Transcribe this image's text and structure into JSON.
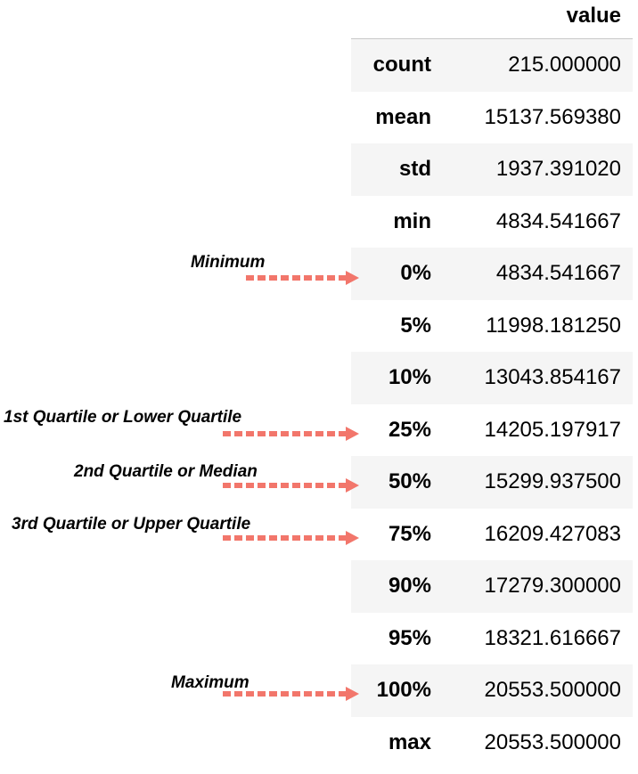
{
  "table": {
    "column_header": "value",
    "rows": [
      {
        "label": "count",
        "value": "215.000000"
      },
      {
        "label": "mean",
        "value": "15137.569380"
      },
      {
        "label": "std",
        "value": "1937.391020"
      },
      {
        "label": "min",
        "value": "4834.541667"
      },
      {
        "label": "0%",
        "value": "4834.541667"
      },
      {
        "label": "5%",
        "value": "11998.181250"
      },
      {
        "label": "10%",
        "value": "13043.854167"
      },
      {
        "label": "25%",
        "value": "14205.197917"
      },
      {
        "label": "50%",
        "value": "15299.937500"
      },
      {
        "label": "75%",
        "value": "16209.427083"
      },
      {
        "label": "90%",
        "value": "17279.300000"
      },
      {
        "label": "95%",
        "value": "18321.616667"
      },
      {
        "label": "100%",
        "value": "20553.500000"
      },
      {
        "label": "max",
        "value": "20553.500000"
      }
    ]
  },
  "annotations": {
    "minimum": "Minimum",
    "q1": "1st Quartile or Lower Quartile",
    "median": "2nd Quartile or Median",
    "q3": "3rd Quartile or Upper Quartile",
    "maximum": "Maximum"
  },
  "colors": {
    "arrow": "#f2766b",
    "row_shade": "#f5f5f5"
  }
}
